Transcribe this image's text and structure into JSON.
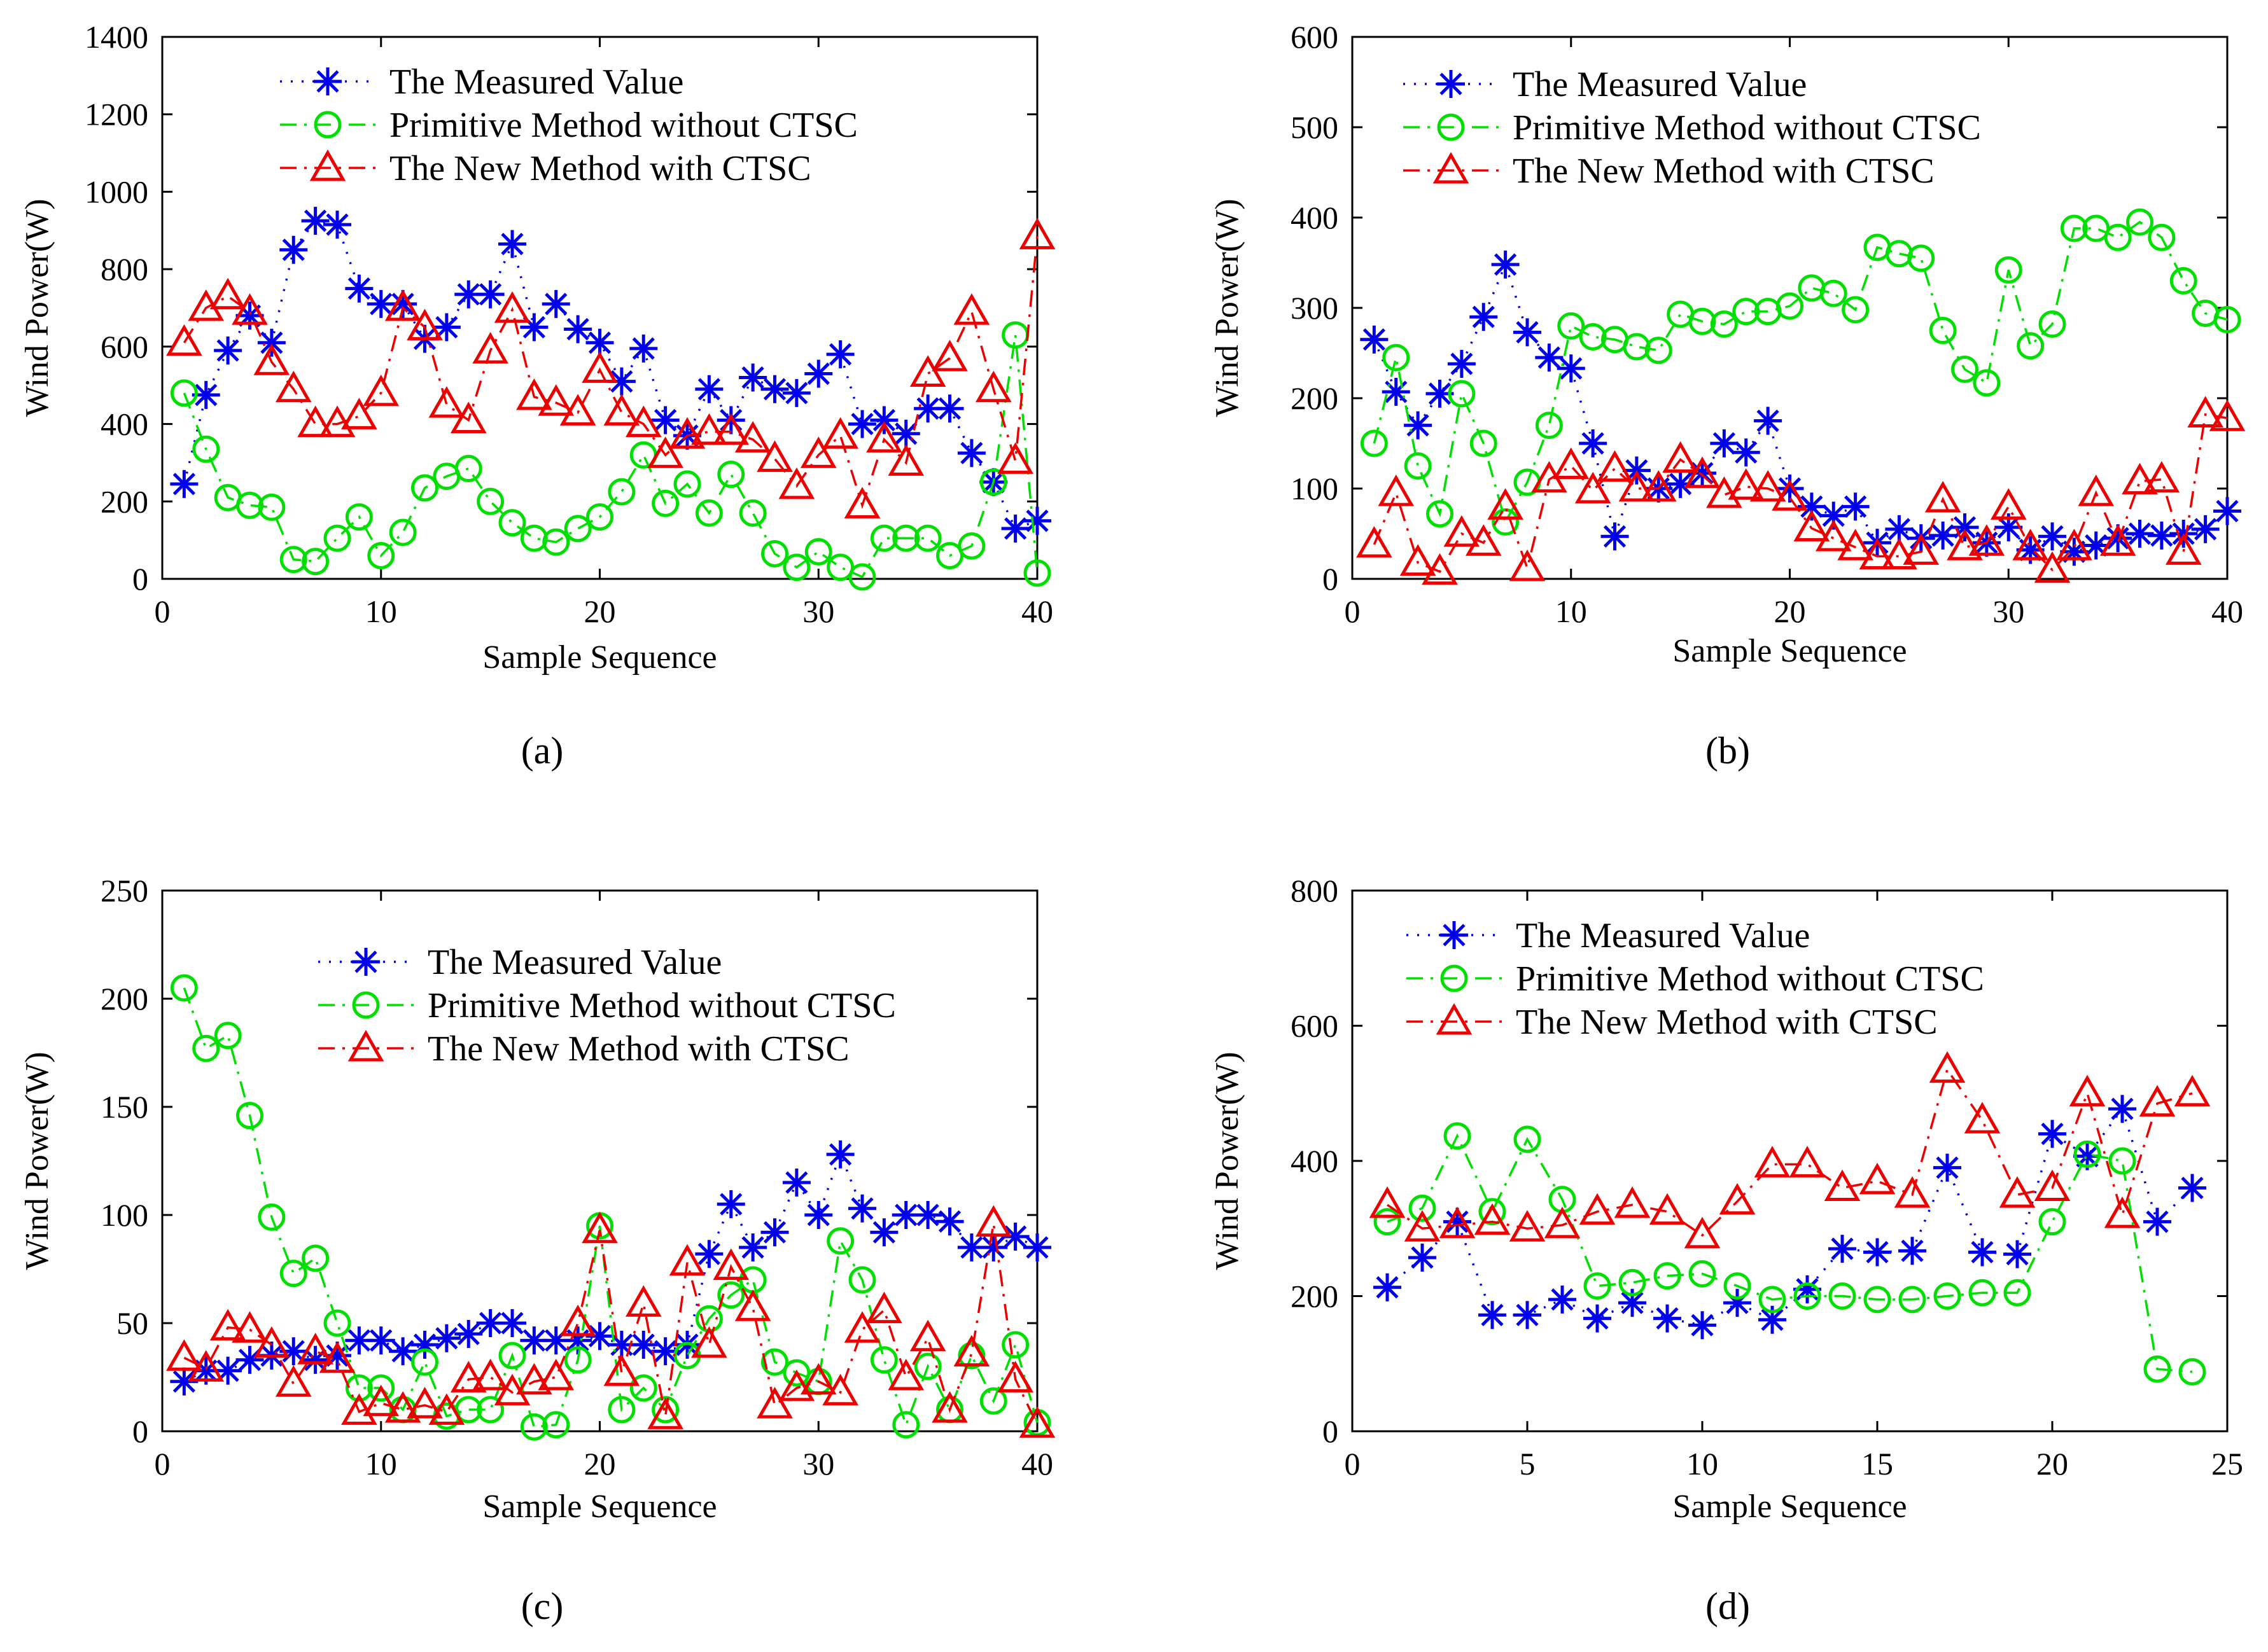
{
  "figure": {
    "colors": {
      "measured": "#0000ee",
      "primitive": "#00e000",
      "new": "#ee0000",
      "axis": "#000000"
    }
  },
  "chart_data": [
    {
      "id": "a",
      "sub_label": "(a)",
      "type": "line",
      "xlabel": "Sample Sequence",
      "ylabel": "Wind Power(W)",
      "xlim": [
        0,
        40
      ],
      "ylim": [
        0,
        1400
      ],
      "xticks": [
        0,
        10,
        20,
        30,
        40
      ],
      "yticks": [
        0,
        200,
        400,
        600,
        800,
        1000,
        1200,
        1400
      ],
      "legend": [
        "The Measured Value",
        "Primitive Method without CTSC",
        "The New Method with CTSC"
      ],
      "legend_position": "top-center",
      "series": [
        {
          "name": "The Measured Value",
          "marker": "star",
          "line": "dotted",
          "x": [
            1,
            2,
            3,
            4,
            5,
            6,
            7,
            8,
            9,
            10,
            11,
            12,
            13,
            14,
            15,
            16,
            17,
            18,
            19,
            20,
            21,
            22,
            23,
            24,
            25,
            26,
            27,
            28,
            29,
            30,
            31,
            32,
            33,
            34,
            35,
            36,
            37,
            38,
            39,
            40
          ],
          "values": [
            245,
            475,
            590,
            680,
            610,
            850,
            925,
            915,
            750,
            710,
            710,
            620,
            650,
            735,
            735,
            865,
            650,
            710,
            645,
            610,
            510,
            595,
            410,
            370,
            490,
            410,
            520,
            490,
            480,
            530,
            580,
            400,
            410,
            375,
            440,
            440,
            325,
            250,
            130,
            150
          ]
        },
        {
          "name": "Primitive Method without CTSC",
          "marker": "circle",
          "line": "dashdot",
          "x": [
            1,
            2,
            3,
            4,
            5,
            6,
            7,
            8,
            9,
            10,
            11,
            12,
            13,
            14,
            15,
            16,
            17,
            18,
            19,
            20,
            21,
            22,
            23,
            24,
            25,
            26,
            27,
            28,
            29,
            30,
            31,
            32,
            33,
            34,
            35,
            36,
            37,
            38,
            39,
            40
          ],
          "values": [
            480,
            335,
            210,
            190,
            185,
            50,
            45,
            105,
            160,
            60,
            120,
            235,
            265,
            285,
            200,
            145,
            105,
            95,
            130,
            160,
            225,
            320,
            195,
            245,
            170,
            270,
            170,
            65,
            30,
            70,
            30,
            5,
            105,
            105,
            105,
            60,
            85,
            250,
            630,
            15
          ]
        },
        {
          "name": "The New Method with CTSC",
          "marker": "triangle",
          "line": "dashdot",
          "x": [
            1,
            2,
            3,
            4,
            5,
            6,
            7,
            8,
            9,
            10,
            11,
            12,
            13,
            14,
            15,
            16,
            17,
            18,
            19,
            20,
            21,
            22,
            23,
            24,
            25,
            26,
            27,
            28,
            29,
            30,
            31,
            32,
            33,
            34,
            35,
            36,
            37,
            38,
            39,
            40
          ],
          "values": [
            610,
            700,
            730,
            690,
            560,
            490,
            400,
            400,
            420,
            480,
            700,
            650,
            450,
            410,
            590,
            695,
            470,
            455,
            430,
            540,
            430,
            400,
            320,
            370,
            380,
            380,
            360,
            310,
            240,
            320,
            370,
            190,
            360,
            300,
            530,
            570,
            690,
            490,
            305,
            885
          ]
        }
      ]
    },
    {
      "id": "b",
      "sub_label": "(b)",
      "type": "line",
      "xlabel": "Sample Sequence",
      "ylabel": "Wind Power(W)",
      "xlim": [
        0,
        40
      ],
      "ylim": [
        0,
        600
      ],
      "xticks": [
        0,
        10,
        20,
        30,
        40
      ],
      "yticks": [
        0,
        100,
        200,
        300,
        400,
        500,
        600
      ],
      "legend": [
        "The Measured Value",
        "Primitive Method without CTSC",
        "The New Method with CTSC"
      ],
      "legend_position": "top-center",
      "series": [
        {
          "name": "The Measured Value",
          "marker": "star",
          "line": "dotted",
          "x": [
            1,
            2,
            3,
            4,
            5,
            6,
            7,
            8,
            9,
            10,
            11,
            12,
            13,
            14,
            15,
            16,
            17,
            18,
            19,
            20,
            21,
            22,
            23,
            24,
            25,
            26,
            27,
            28,
            29,
            30,
            31,
            32,
            33,
            34,
            35,
            36,
            37,
            38,
            39,
            40
          ],
          "values": [
            265,
            207,
            170,
            205,
            238,
            290,
            348,
            273,
            245,
            233,
            150,
            47,
            120,
            100,
            105,
            117,
            150,
            140,
            175,
            100,
            80,
            70,
            80,
            40,
            55,
            45,
            48,
            57,
            40,
            57,
            32,
            47,
            30,
            37,
            45,
            50,
            48,
            50,
            55,
            75
          ]
        },
        {
          "name": "Primitive Method without CTSC",
          "marker": "circle",
          "line": "dashdot",
          "x": [
            1,
            2,
            3,
            4,
            5,
            6,
            7,
            8,
            9,
            10,
            11,
            12,
            13,
            14,
            15,
            16,
            17,
            18,
            19,
            20,
            21,
            22,
            23,
            24,
            25,
            26,
            27,
            28,
            29,
            30,
            31,
            32,
            33,
            34,
            35,
            36,
            37,
            38,
            39,
            40
          ],
          "values": [
            150,
            245,
            125,
            72,
            205,
            150,
            63,
            107,
            170,
            280,
            268,
            265,
            257,
            253,
            293,
            285,
            282,
            296,
            296,
            302,
            322,
            316,
            298,
            367,
            360,
            355,
            275,
            232,
            217,
            342,
            258,
            282,
            388,
            388,
            378,
            395,
            378,
            330,
            294,
            287
          ]
        },
        {
          "name": "The New Method with CTSC",
          "marker": "triangle",
          "line": "dashdot",
          "x": [
            1,
            2,
            3,
            4,
            5,
            6,
            7,
            8,
            9,
            10,
            11,
            12,
            13,
            14,
            15,
            16,
            17,
            18,
            19,
            20,
            21,
            22,
            23,
            24,
            25,
            26,
            27,
            28,
            29,
            30,
            31,
            32,
            33,
            34,
            35,
            36,
            37,
            38,
            39,
            40
          ],
          "values": [
            38,
            95,
            18,
            8,
            50,
            40,
            80,
            12,
            110,
            125,
            98,
            122,
            100,
            100,
            132,
            115,
            93,
            102,
            100,
            90,
            56,
            45,
            35,
            25,
            25,
            30,
            88,
            35,
            40,
            80,
            35,
            10,
            35,
            95,
            40,
            108,
            110,
            30,
            182,
            178
          ]
        }
      ]
    },
    {
      "id": "c",
      "sub_label": "(c)",
      "type": "line",
      "xlabel": "Sample Sequence",
      "ylabel": "Wind Power(W)",
      "xlim": [
        0,
        40
      ],
      "ylim": [
        0,
        250
      ],
      "xticks": [
        0,
        10,
        20,
        30,
        40
      ],
      "yticks": [
        0,
        50,
        100,
        150,
        200,
        250
      ],
      "legend": [
        "The Measured Value",
        "Primitive Method without CTSC",
        "The New Method with CTSC"
      ],
      "legend_position": "top-right",
      "series": [
        {
          "name": "The Measured Value",
          "marker": "star",
          "line": "dotted",
          "x": [
            1,
            2,
            3,
            4,
            5,
            6,
            7,
            8,
            9,
            10,
            11,
            12,
            13,
            14,
            15,
            16,
            17,
            18,
            19,
            20,
            21,
            22,
            23,
            24,
            25,
            26,
            27,
            28,
            29,
            30,
            31,
            32,
            33,
            34,
            35,
            36,
            37,
            38,
            39,
            40
          ],
          "values": [
            23,
            28,
            28,
            33,
            35,
            37,
            33,
            35,
            42,
            42,
            37,
            40,
            43,
            45,
            50,
            50,
            42,
            42,
            42,
            44,
            40,
            40,
            37,
            40,
            82,
            105,
            85,
            92,
            115,
            100,
            128,
            103,
            92,
            100,
            100,
            97,
            85,
            85,
            90,
            85
          ]
        },
        {
          "name": "Primitive Method without CTSC",
          "marker": "circle",
          "line": "dashdot",
          "x": [
            1,
            2,
            3,
            4,
            5,
            6,
            7,
            8,
            9,
            10,
            11,
            12,
            13,
            14,
            15,
            16,
            17,
            18,
            19,
            20,
            21,
            22,
            23,
            24,
            25,
            26,
            27,
            28,
            29,
            30,
            31,
            32,
            33,
            34,
            35,
            36,
            37,
            38,
            39,
            40
          ],
          "values": [
            205,
            177,
            183,
            146,
            99,
            73,
            80,
            50,
            20,
            20,
            10,
            32,
            7,
            10,
            10,
            35,
            2,
            3,
            33,
            95,
            10,
            20,
            10,
            35,
            52,
            63,
            70,
            32,
            27,
            23,
            88,
            70,
            33,
            3,
            30,
            10,
            35,
            14,
            40,
            4
          ]
        },
        {
          "name": "The New Method with CTSC",
          "marker": "triangle",
          "line": "dashdot",
          "x": [
            1,
            2,
            3,
            4,
            5,
            6,
            7,
            8,
            9,
            10,
            11,
            12,
            13,
            14,
            15,
            16,
            17,
            18,
            19,
            20,
            21,
            22,
            23,
            24,
            25,
            26,
            27,
            28,
            29,
            30,
            31,
            32,
            33,
            34,
            35,
            36,
            37,
            38,
            39,
            40
          ],
          "values": [
            34,
            29,
            48,
            47,
            40,
            22,
            37,
            33,
            9,
            13,
            10,
            12,
            9,
            24,
            25,
            18,
            23,
            25,
            50,
            93,
            27,
            59,
            7,
            78,
            40,
            76,
            57,
            12,
            20,
            23,
            18,
            47,
            56,
            25,
            43,
            10,
            36,
            96,
            24,
            3
          ]
        }
      ]
    },
    {
      "id": "d",
      "sub_label": "(d)",
      "type": "line",
      "xlabel": "Sample Sequence",
      "ylabel": "Wind Power(W)",
      "xlim": [
        0,
        25
      ],
      "ylim": [
        0,
        800
      ],
      "xticks": [
        0,
        5,
        10,
        15,
        20,
        25
      ],
      "yticks": [
        0,
        200,
        400,
        600,
        800
      ],
      "legend": [
        "The Measured Value",
        "Primitive Method without CTSC",
        "The New Method with CTSC"
      ],
      "legend_position": "top-center",
      "series": [
        {
          "name": "The Measured Value",
          "marker": "star",
          "line": "dotted",
          "x": [
            1,
            2,
            3,
            4,
            5,
            6,
            7,
            8,
            9,
            10,
            11,
            12,
            13,
            14,
            15,
            16,
            17,
            18,
            19,
            20,
            21,
            22,
            23,
            24
          ],
          "values": [
            213,
            257,
            310,
            172,
            172,
            195,
            167,
            190,
            167,
            157,
            190,
            165,
            210,
            270,
            265,
            267,
            390,
            265,
            262,
            440,
            407,
            477,
            310,
            360
          ]
        },
        {
          "name": "Primitive Method without CTSC",
          "marker": "circle",
          "line": "dashdot",
          "x": [
            1,
            2,
            3,
            4,
            5,
            6,
            7,
            8,
            9,
            10,
            11,
            12,
            13,
            14,
            15,
            16,
            17,
            18,
            19,
            20,
            21,
            22,
            23,
            24
          ],
          "values": [
            310,
            330,
            437,
            325,
            432,
            343,
            215,
            220,
            230,
            233,
            215,
            195,
            200,
            200,
            195,
            195,
            200,
            205,
            205,
            310,
            410,
            400,
            92,
            88
          ]
        },
        {
          "name": "The New Method with CTSC",
          "marker": "triangle",
          "line": "dashdot",
          "x": [
            1,
            2,
            3,
            4,
            5,
            6,
            7,
            8,
            9,
            10,
            11,
            12,
            13,
            14,
            15,
            16,
            17,
            18,
            19,
            20,
            21,
            22,
            23,
            24
          ],
          "values": [
            335,
            300,
            305,
            310,
            300,
            305,
            325,
            335,
            325,
            290,
            340,
            395,
            395,
            360,
            370,
            350,
            535,
            460,
            350,
            360,
            500,
            320,
            485,
            500
          ]
        }
      ]
    }
  ]
}
